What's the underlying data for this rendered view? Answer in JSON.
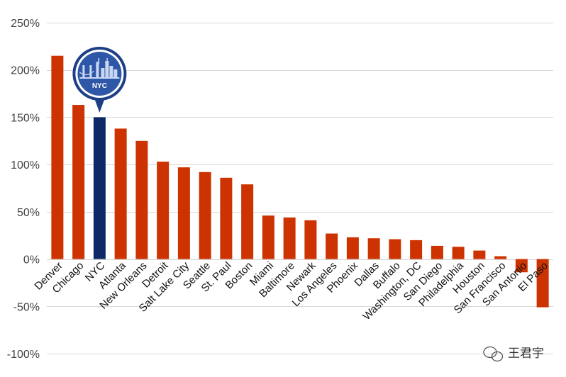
{
  "chart_data": {
    "type": "bar",
    "categories": [
      "Denver",
      "Chicago",
      "NYC",
      "Atlanta",
      "New Orleans",
      "Detroit",
      "Salt Lake City",
      "Seattle",
      "St. Paul",
      "Boston",
      "Miami",
      "Baltimore",
      "Newark",
      "Los Angeles",
      "Phoenix",
      "Dallas",
      "Buffalo",
      "Washington, DC",
      "San Diego",
      "Philadelphia",
      "Houston",
      "San Francisco",
      "San Antonio",
      "El Paso"
    ],
    "values": [
      215,
      163,
      150,
      138,
      125,
      103,
      97,
      92,
      86,
      79,
      46,
      44,
      41,
      27,
      23,
      22,
      21,
      20,
      14,
      13,
      9,
      3,
      -14,
      -51
    ],
    "highlight": "NYC",
    "ylim": [
      -100,
      250
    ],
    "yticks": [
      -100,
      -50,
      0,
      50,
      100,
      150,
      200,
      250
    ],
    "ytick_labels": [
      "-100%",
      "-50%",
      "0%",
      "50%",
      "100%",
      "150%",
      "200%",
      "250%"
    ],
    "grid": true,
    "title": "",
    "xlabel": "",
    "ylabel": "",
    "colors": {
      "bar": "#cc3300",
      "highlight": "#0d2a66",
      "grid": "#d9d9d9",
      "badge": "#2f57a8"
    }
  },
  "badge": {
    "label": "NYC",
    "icon": "nyc-skyline-icon"
  },
  "watermark": {
    "text": "王君宇",
    "icon": "wechat-icon"
  }
}
